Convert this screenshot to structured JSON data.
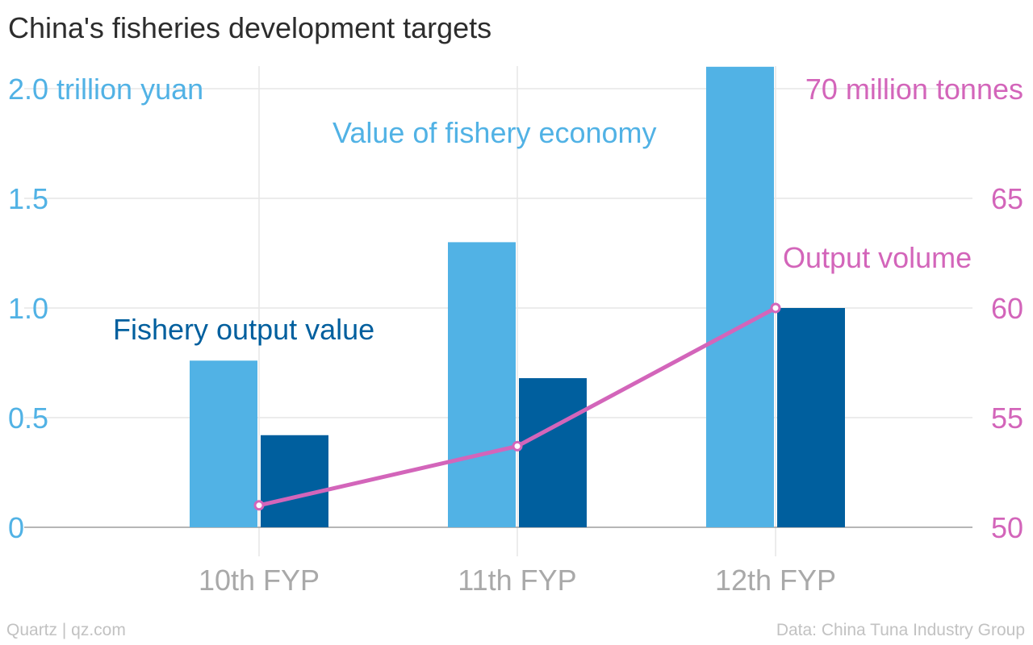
{
  "title": "China's fisheries development targets",
  "footer": {
    "source_left": "Quartz | qz.com",
    "source_right": "Data: China Tuna Industry Group"
  },
  "colors": {
    "value_bar": "#51b2e5",
    "output_bar": "#005f9e",
    "volume_line": "#d365ba",
    "grid": "#e6e6e6",
    "axis": "#9e9e9e"
  },
  "chart_data": {
    "type": "bar",
    "title": "China's fisheries development targets",
    "categories": [
      "10th FYP",
      "11th FYP",
      "12th FYP"
    ],
    "y_left": {
      "ylim": [
        0,
        2.0
      ],
      "ticks": [
        0,
        0.5,
        1.0,
        1.5,
        2.0
      ],
      "tick_labels": [
        "0",
        "0.5",
        "1.0",
        "1.5",
        "2.0 trillion yuan"
      ]
    },
    "y_right": {
      "ylim": [
        50,
        70
      ],
      "ticks": [
        50,
        55,
        60,
        65,
        70
      ],
      "tick_labels": [
        "50",
        "55",
        "60",
        "65",
        "70 million tonnes"
      ]
    },
    "series": [
      {
        "name": "Value of fishery economy",
        "kind": "bar",
        "axis": "left",
        "values": [
          0.76,
          1.3,
          2.1
        ]
      },
      {
        "name": "Fishery output value",
        "kind": "bar",
        "axis": "left",
        "values": [
          0.42,
          0.68,
          1.0
        ]
      },
      {
        "name": "Output volume",
        "kind": "line",
        "axis": "right",
        "values": [
          51.0,
          53.7,
          60.0
        ]
      }
    ],
    "legend": "inline annotations",
    "grid": true
  }
}
